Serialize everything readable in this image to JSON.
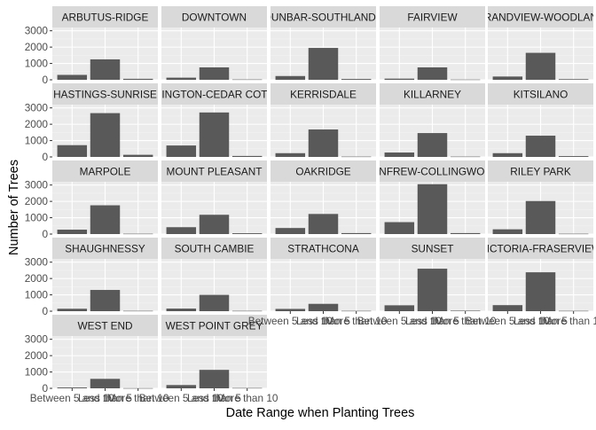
{
  "chart_data": {
    "type": "bar",
    "facet_layout": "wrap",
    "xlabel": "Date Range when Planting Trees",
    "ylabel": "Number of Trees",
    "categories": [
      "Between 5 and 10",
      "Less than 5",
      "More than 10"
    ],
    "x_tick_labels": [
      "Between 5 and 10",
      "Less than 5",
      "More than 10"
    ],
    "y_ticks": [
      0,
      1000,
      2000,
      3000
    ],
    "y_tick_labels": [
      "0",
      "1000",
      "2000",
      "3000"
    ],
    "ylim": [
      0,
      3200
    ],
    "grid": true,
    "colors": {
      "panel_bg": "#EBEBEB",
      "strip_bg": "#D9D9D9",
      "grid_major": "#FFFFFF",
      "grid_minor": "#F3F3F3",
      "bar": "#595959",
      "text": "#1A1A1A",
      "tick_text": "#4D4D4D"
    },
    "facets": [
      {
        "label": "ARBUTUS-RIDGE",
        "values": [
          300,
          1250,
          60
        ]
      },
      {
        "label": "DOWNTOWN",
        "values": [
          130,
          760,
          20
        ]
      },
      {
        "label": "DUNBAR-SOUTHLANDS",
        "values": [
          230,
          1950,
          50
        ]
      },
      {
        "label": "FAIRVIEW",
        "values": [
          70,
          760,
          15
        ]
      },
      {
        "label": "GRANDVIEW-WOODLAND",
        "values": [
          200,
          1650,
          40
        ]
      },
      {
        "label": "HASTINGS-SUNRISE",
        "values": [
          720,
          2680,
          130
        ]
      },
      {
        "label": "KENSINGTON-CEDAR COTTAGE",
        "values": [
          700,
          2720,
          60
        ]
      },
      {
        "label": "KERRISDALE",
        "values": [
          230,
          1680,
          20
        ]
      },
      {
        "label": "KILLARNEY",
        "values": [
          270,
          1460,
          20
        ]
      },
      {
        "label": "KITSILANO",
        "values": [
          230,
          1300,
          50
        ]
      },
      {
        "label": "MARPOLE",
        "values": [
          270,
          1760,
          20
        ]
      },
      {
        "label": "MOUNT PLEASANT",
        "values": [
          420,
          1180,
          50
        ]
      },
      {
        "label": "OAKRIDGE",
        "values": [
          370,
          1230,
          60
        ]
      },
      {
        "label": "RENFREW-COLLINGWOOD",
        "values": [
          730,
          3050,
          60
        ]
      },
      {
        "label": "RILEY PARK",
        "values": [
          290,
          2020,
          20
        ]
      },
      {
        "label": "SHAUGHNESSY",
        "values": [
          150,
          1300,
          20
        ]
      },
      {
        "label": "SOUTH CAMBIE",
        "values": [
          160,
          1000,
          20
        ]
      },
      {
        "label": "STRATHCONA",
        "values": [
          140,
          450,
          20
        ]
      },
      {
        "label": "SUNSET",
        "values": [
          360,
          2600,
          30
        ]
      },
      {
        "label": "VICTORIA-FRASERVIEW",
        "values": [
          370,
          2380,
          20
        ]
      },
      {
        "label": "WEST END",
        "values": [
          50,
          580,
          10
        ]
      },
      {
        "label": "WEST POINT GREY",
        "values": [
          200,
          1130,
          20
        ]
      }
    ]
  }
}
